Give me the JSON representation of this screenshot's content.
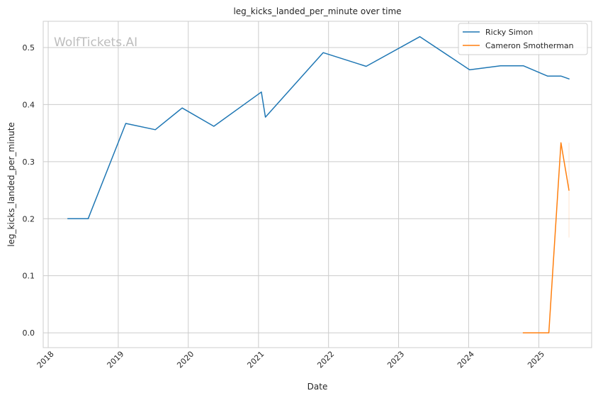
{
  "chart_data": {
    "type": "line",
    "title": "leg_kicks_landed_per_minute over time",
    "xlabel": "Date",
    "ylabel": "leg_kicks_landed_per_minute",
    "watermark": "WolfTickets.AI",
    "xlim": [
      "2017-12-06",
      "2025-10-03"
    ],
    "ylim": [
      -0.026,
      0.546
    ],
    "x_ticks": [
      "2018",
      "2019",
      "2020",
      "2021",
      "2022",
      "2023",
      "2024",
      "2025"
    ],
    "y_ticks": [
      "0.0",
      "0.1",
      "0.2",
      "0.3",
      "0.4",
      "0.5"
    ],
    "grid": true,
    "legend_position": "top-right",
    "series": [
      {
        "name": "Ricky Simon",
        "color": "#1f77b4",
        "points": [
          [
            "2018-04-14",
            0.2
          ],
          [
            "2018-07-28",
            0.2
          ],
          [
            "2019-02-09",
            0.367
          ],
          [
            "2019-07-13",
            0.356
          ],
          [
            "2019-11-30",
            0.394
          ],
          [
            "2020-05-13",
            0.362
          ],
          [
            "2021-01-16",
            0.422
          ],
          [
            "2021-02-06",
            0.378
          ],
          [
            "2021-12-04",
            0.491
          ],
          [
            "2022-07-16",
            0.467
          ],
          [
            "2023-04-22",
            0.519
          ],
          [
            "2024-01-06",
            0.461
          ],
          [
            "2024-06-15",
            0.468
          ],
          [
            "2024-10-12",
            0.468
          ],
          [
            "2025-02-15",
            0.45
          ],
          [
            "2025-04-26",
            0.45
          ],
          [
            "2025-06-07",
            0.445
          ]
        ]
      },
      {
        "name": "Cameron Smotherman",
        "color": "#ff7f0e",
        "points": [
          [
            "2024-10-12",
            0.0
          ],
          [
            "2025-02-22",
            0.0
          ],
          [
            "2025-04-26",
            0.333
          ],
          [
            "2025-06-07",
            0.25
          ]
        ],
        "band": {
          "x": "2025-06-07",
          "low": 0.167,
          "high": 0.333
        }
      }
    ]
  }
}
